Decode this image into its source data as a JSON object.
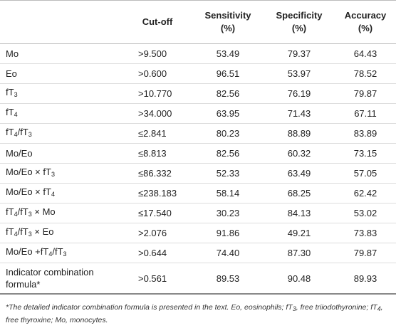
{
  "table": {
    "header": [
      [
        "Cut-off"
      ],
      [
        "Sensitivity",
        "(%)"
      ],
      [
        "Specificity",
        "(%)"
      ],
      [
        "Accuracy",
        "(%)"
      ]
    ],
    "rows": [
      {
        "label": [
          {
            "t": "Mo"
          }
        ],
        "cells": [
          ">9.500",
          "53.49",
          "79.37",
          "64.43"
        ]
      },
      {
        "label": [
          {
            "t": "Eo"
          }
        ],
        "cells": [
          ">0.600",
          "96.51",
          "53.97",
          "78.52"
        ]
      },
      {
        "label": [
          {
            "t": "fT"
          },
          {
            "sub": "3"
          }
        ],
        "cells": [
          ">10.770",
          "82.56",
          "76.19",
          "79.87"
        ]
      },
      {
        "label": [
          {
            "t": "fT"
          },
          {
            "sub": "4"
          }
        ],
        "cells": [
          ">34.000",
          "63.95",
          "71.43",
          "67.11"
        ]
      },
      {
        "label": [
          {
            "t": "fT"
          },
          {
            "sub": "4"
          },
          {
            "t": "/fT"
          },
          {
            "sub": "3"
          }
        ],
        "cells": [
          "≤2.841",
          "80.23",
          "88.89",
          "83.89"
        ]
      },
      {
        "label": [
          {
            "t": "Mo/Eo"
          }
        ],
        "cells": [
          "≤8.813",
          "82.56",
          "60.32",
          "73.15"
        ]
      },
      {
        "label": [
          {
            "t": "Mo/Eo × fT"
          },
          {
            "sub": "3"
          }
        ],
        "cells": [
          "≤86.332",
          "52.33",
          "63.49",
          "57.05"
        ]
      },
      {
        "label": [
          {
            "t": "Mo/Eo × fT"
          },
          {
            "sub": "4"
          }
        ],
        "cells": [
          "≤238.183",
          "58.14",
          "68.25",
          "62.42"
        ]
      },
      {
        "label": [
          {
            "t": "fT"
          },
          {
            "sub": "4"
          },
          {
            "t": "/fT"
          },
          {
            "sub": "3"
          },
          {
            "t": " × Mo"
          }
        ],
        "cells": [
          "≤17.540",
          "30.23",
          "84.13",
          "53.02"
        ]
      },
      {
        "label": [
          {
            "t": "fT"
          },
          {
            "sub": "4"
          },
          {
            "t": "/fT"
          },
          {
            "sub": "3"
          },
          {
            "t": " × Eo"
          }
        ],
        "cells": [
          ">2.076",
          "91.86",
          "49.21",
          "73.83"
        ]
      },
      {
        "label": [
          {
            "t": "Mo/Eo +fT"
          },
          {
            "sub": "4"
          },
          {
            "t": "/fT"
          },
          {
            "sub": "3"
          }
        ],
        "cells": [
          ">0.644",
          "74.40",
          "87.30",
          "79.87"
        ]
      },
      {
        "label": [
          {
            "t": "Indicator combination formula*"
          }
        ],
        "cells": [
          ">0.561",
          "89.53",
          "90.48",
          "89.93"
        ]
      }
    ],
    "footnote": [
      {
        "t": "*The detailed indicator combination formula is presented in the text. Eo, eosinophils; fT"
      },
      {
        "sub": "3"
      },
      {
        "t": ", free triiodothyronine; fT"
      },
      {
        "sub": "4"
      },
      {
        "t": ", free thyroxine; Mo, monocytes."
      }
    ]
  }
}
